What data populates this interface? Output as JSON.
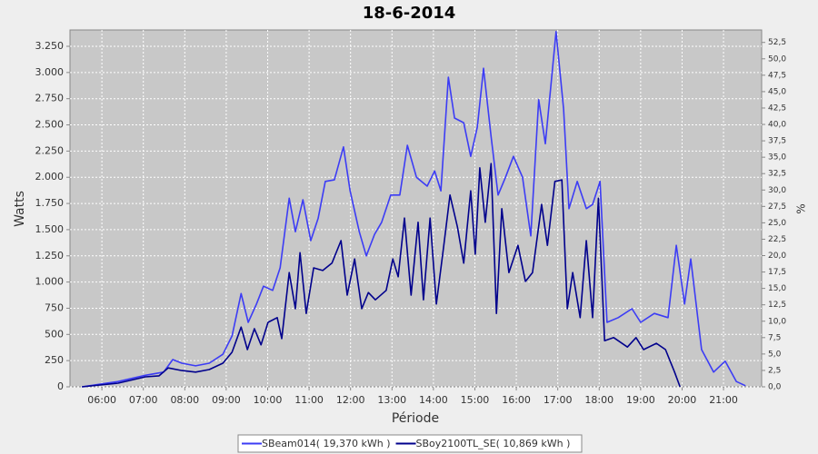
{
  "chart_data": {
    "type": "line",
    "title": "18-6-2014",
    "x_label": "Période",
    "y_label": "Watts",
    "y2_label": "%",
    "xlim": [
      5.23,
      21.92
    ],
    "xticks": [
      {
        "value": 6,
        "label": "06:00"
      },
      {
        "value": 7,
        "label": "07:00"
      },
      {
        "value": 8,
        "label": "08:00"
      },
      {
        "value": 9,
        "label": "09:00"
      },
      {
        "value": 10,
        "label": "10:00"
      },
      {
        "value": 11,
        "label": "11:00"
      },
      {
        "value": 12,
        "label": "12:00"
      },
      {
        "value": 13,
        "label": "13:00"
      },
      {
        "value": 14,
        "label": "14:00"
      },
      {
        "value": 15,
        "label": "15:00"
      },
      {
        "value": 16,
        "label": "16:00"
      },
      {
        "value": 17,
        "label": "17:00"
      },
      {
        "value": 18,
        "label": "18:00"
      },
      {
        "value": 19,
        "label": "19:00"
      },
      {
        "value": 20,
        "label": "20:00"
      },
      {
        "value": 21,
        "label": "21:00"
      }
    ],
    "ylim": [
      0,
      3406
    ],
    "yticks": [
      0,
      250,
      500,
      750,
      {
        "value": 1000,
        "label": "1.000"
      },
      {
        "value": 1250,
        "label": "1.250"
      },
      {
        "value": 1500,
        "label": "1.500"
      },
      {
        "value": 1750,
        "label": "1.750"
      },
      {
        "value": 2000,
        "label": "2.000"
      },
      {
        "value": 2250,
        "label": "2.250"
      },
      {
        "value": 2500,
        "label": "2.500"
      },
      {
        "value": 2750,
        "label": "2.750"
      },
      {
        "value": 3000,
        "label": "3.000"
      },
      {
        "value": 3250,
        "label": "3.250"
      }
    ],
    "y2lim": [
      0,
      54.4
    ],
    "y2ticks": [
      {
        "value": 0,
        "label": "0,0"
      },
      {
        "value": 2.5,
        "label": "2,5"
      },
      {
        "value": 5,
        "label": "5,0"
      },
      {
        "value": 7.5,
        "label": "7,5"
      },
      {
        "value": 10,
        "label": "10,0"
      },
      {
        "value": 12.5,
        "label": "12,5"
      },
      {
        "value": 15,
        "label": "15,0"
      },
      {
        "value": 17.5,
        "label": "17,5"
      },
      {
        "value": 20,
        "label": "20,0"
      },
      {
        "value": 22.5,
        "label": "22,5"
      },
      {
        "value": 25,
        "label": "25,0"
      },
      {
        "value": 27.5,
        "label": "27,5"
      },
      {
        "value": 30,
        "label": "30,0"
      },
      {
        "value": 32.5,
        "label": "32,5"
      },
      {
        "value": 35,
        "label": "35,0"
      },
      {
        "value": 37.5,
        "label": "37,5"
      },
      {
        "value": 40,
        "label": "40,0"
      },
      {
        "value": 42.5,
        "label": "42,5"
      },
      {
        "value": 45,
        "label": "45,0"
      },
      {
        "value": 47.5,
        "label": "47,5"
      },
      {
        "value": 50,
        "label": "50,0"
      },
      {
        "value": 52.5,
        "label": "52,5"
      }
    ],
    "grid": true,
    "legend": "bottom",
    "series": [
      {
        "name": "SBeam014( 19,370 kWh )",
        "color": "#3c3cf5",
        "x": [
          5.52,
          6.39,
          7.05,
          7.49,
          7.71,
          7.93,
          8.26,
          8.59,
          8.92,
          9.14,
          9.36,
          9.53,
          9.73,
          9.9,
          10.12,
          10.3,
          10.52,
          10.67,
          10.85,
          11.04,
          11.22,
          11.39,
          11.61,
          11.83,
          11.99,
          12.21,
          12.38,
          12.58,
          12.75,
          12.97,
          13.19,
          13.37,
          13.59,
          13.85,
          14.03,
          14.18,
          14.36,
          14.51,
          14.73,
          14.9,
          15.06,
          15.21,
          15.39,
          15.56,
          15.74,
          15.93,
          16.15,
          16.35,
          16.54,
          16.7,
          16.96,
          17.14,
          17.27,
          17.47,
          17.69,
          17.84,
          18.02,
          18.19,
          18.46,
          18.79,
          19.0,
          19.33,
          19.66,
          19.86,
          20.06,
          20.21,
          20.47,
          20.76,
          21.04,
          21.31,
          21.53
        ],
        "values": [
          0,
          50,
          110,
          140,
          260,
          225,
          200,
          225,
          310,
          485,
          890,
          615,
          790,
          960,
          920,
          1135,
          1800,
          1480,
          1785,
          1395,
          1610,
          1960,
          1975,
          2290,
          1870,
          1480,
          1250,
          1455,
          1570,
          1830,
          1830,
          2305,
          2000,
          1915,
          2060,
          1870,
          2955,
          2565,
          2520,
          2200,
          2480,
          3040,
          2390,
          1830,
          2000,
          2200,
          2000,
          1440,
          2740,
          2320,
          3390,
          2650,
          1700,
          1960,
          1700,
          1740,
          1960,
          615,
          660,
          745,
          615,
          700,
          660,
          1350,
          790,
          1220,
          355,
          140,
          245,
          50,
          10
        ]
      },
      {
        "name": "SBoy2100TL_SE( 10,869 kWh )",
        "color": "#00008c",
        "x": [
          5.52,
          6.39,
          7.05,
          7.38,
          7.6,
          7.93,
          8.26,
          8.59,
          8.92,
          9.14,
          9.36,
          9.51,
          9.68,
          9.84,
          10.01,
          10.23,
          10.34,
          10.52,
          10.67,
          10.78,
          10.93,
          11.11,
          11.33,
          11.55,
          11.77,
          11.92,
          12.1,
          12.27,
          12.43,
          12.6,
          12.86,
          13.02,
          13.15,
          13.3,
          13.46,
          13.63,
          13.76,
          13.92,
          14.07,
          14.25,
          14.4,
          14.58,
          14.73,
          14.9,
          15.01,
          15.12,
          15.25,
          15.39,
          15.52,
          15.65,
          15.82,
          16.04,
          16.22,
          16.39,
          16.61,
          16.75,
          16.93,
          17.1,
          17.23,
          17.36,
          17.54,
          17.69,
          17.84,
          17.98,
          18.13,
          18.35,
          18.68,
          18.89,
          19.07,
          19.38,
          19.6,
          19.82,
          19.95
        ],
        "values": [
          0,
          35,
          95,
          105,
          180,
          155,
          140,
          165,
          225,
          330,
          570,
          355,
          555,
          400,
          615,
          660,
          460,
          1090,
          745,
          1280,
          700,
          1135,
          1110,
          1180,
          1395,
          875,
          1220,
          745,
          900,
          830,
          920,
          1220,
          1050,
          1610,
          875,
          1570,
          830,
          1610,
          790,
          1350,
          1830,
          1525,
          1180,
          1870,
          1265,
          2090,
          1570,
          2130,
          700,
          1700,
          1090,
          1350,
          1005,
          1090,
          1740,
          1350,
          1960,
          1975,
          745,
          1090,
          660,
          1395,
          660,
          1800,
          440,
          470,
          380,
          470,
          355,
          415,
          355,
          140,
          0
        ]
      }
    ]
  }
}
